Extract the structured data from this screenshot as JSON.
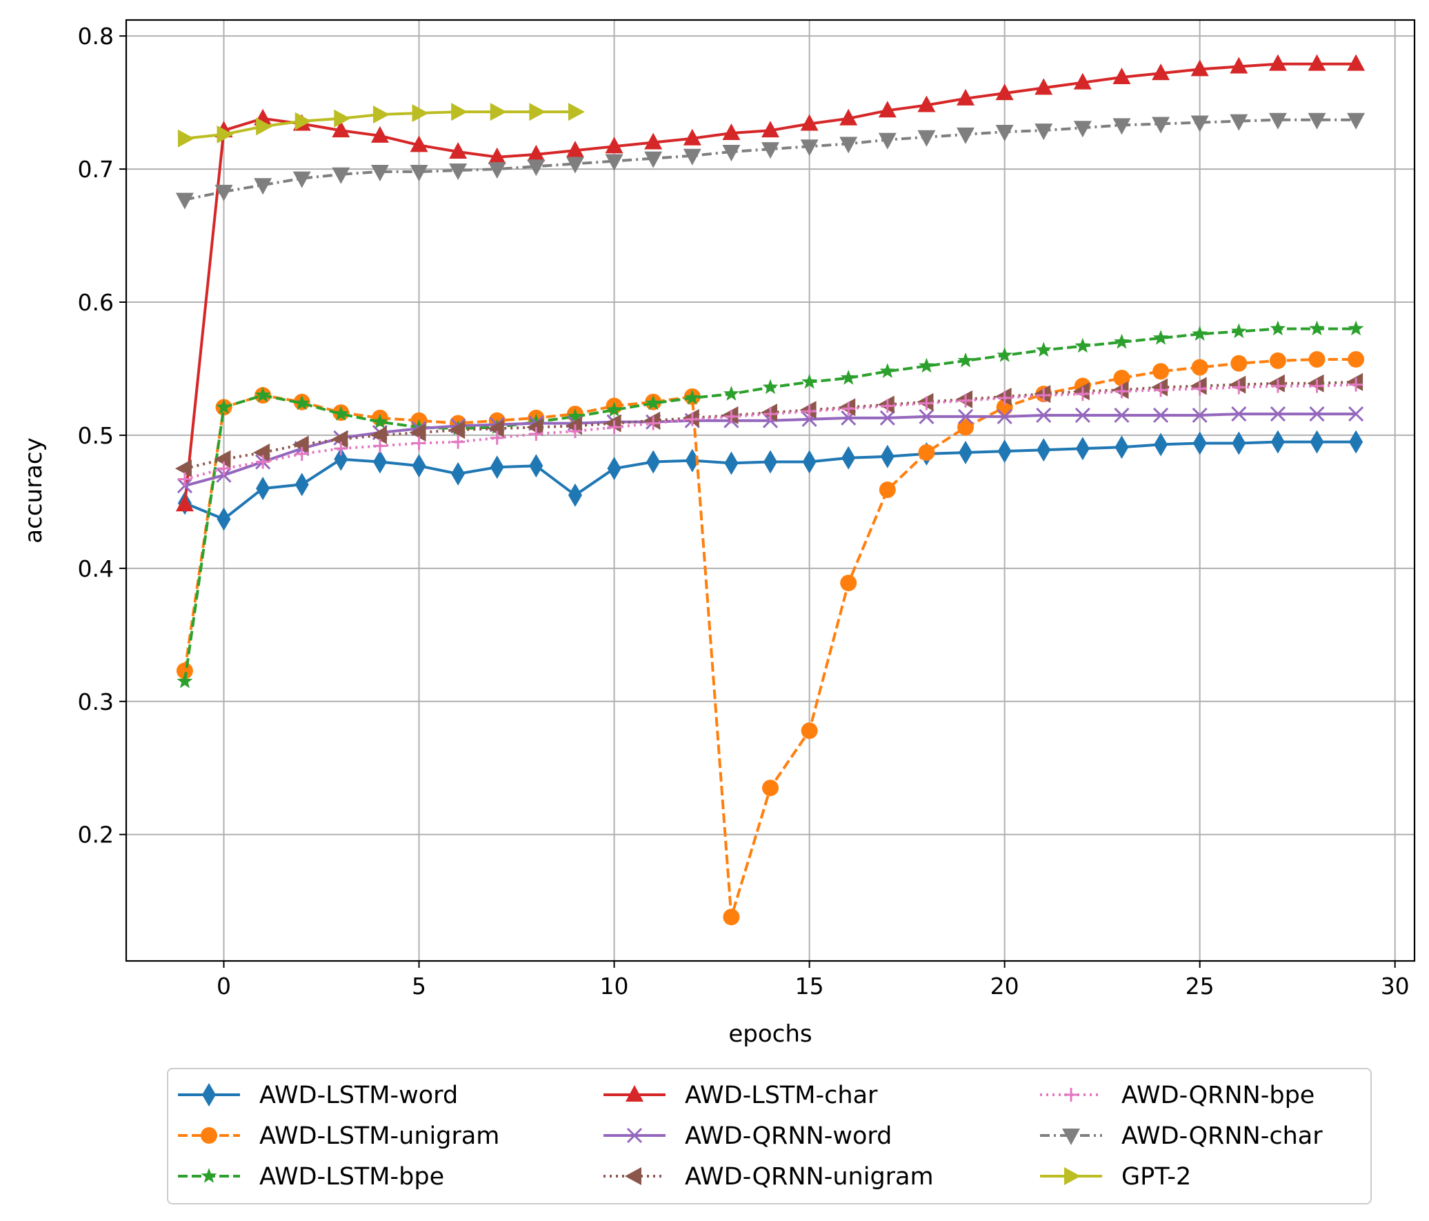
{
  "chart_data": {
    "type": "line",
    "title": "",
    "xlabel": "epochs",
    "ylabel": "accuracy",
    "xlim": [
      -2.5,
      30.5
    ],
    "ylim": [
      0.105,
      0.812
    ],
    "xticks": [
      0,
      5,
      10,
      15,
      20,
      25,
      30
    ],
    "xtick_labels": [
      "0",
      "5",
      "10",
      "15",
      "20",
      "25",
      "30"
    ],
    "yticks": [
      0.2,
      0.3,
      0.4,
      0.5,
      0.6,
      0.7,
      0.8
    ],
    "ytick_labels": [
      "0.2",
      "0.3",
      "0.4",
      "0.5",
      "0.6",
      "0.7",
      "0.8"
    ],
    "grid": true,
    "legend_position": "bottom-center, below plot, 3 columns",
    "series": [
      {
        "name": "AWD-LSTM-word",
        "color": "#1f77b4",
        "marker": "thin_diamond",
        "dash": "solid",
        "x": [
          -1,
          0,
          1,
          2,
          3,
          4,
          5,
          6,
          7,
          8,
          9,
          10,
          11,
          12,
          13,
          14,
          15,
          16,
          17,
          18,
          19,
          20,
          21,
          22,
          23,
          24,
          25,
          26,
          27,
          28,
          29
        ],
        "y": [
          0.449,
          0.437,
          0.46,
          0.463,
          0.482,
          0.48,
          0.477,
          0.471,
          0.476,
          0.477,
          0.455,
          0.475,
          0.48,
          0.481,
          0.479,
          0.48,
          0.48,
          0.483,
          0.484,
          0.486,
          0.487,
          0.488,
          0.489,
          0.49,
          0.491,
          0.493,
          0.494,
          0.494,
          0.495,
          0.495,
          0.495
        ]
      },
      {
        "name": "AWD-LSTM-unigram",
        "color": "#ff7f0e",
        "marker": "circle",
        "dash": "dashed",
        "x": [
          -1,
          0,
          1,
          2,
          3,
          4,
          5,
          6,
          7,
          8,
          9,
          10,
          11,
          12,
          13,
          14,
          15,
          16,
          17,
          18,
          19,
          20,
          21,
          22,
          23,
          24,
          25,
          26,
          27,
          28,
          29
        ],
        "y": [
          0.323,
          0.521,
          0.53,
          0.525,
          0.517,
          0.513,
          0.511,
          0.509,
          0.511,
          0.513,
          0.516,
          0.522,
          0.525,
          0.529,
          0.138,
          0.235,
          0.278,
          0.389,
          0.459,
          0.487,
          0.506,
          0.521,
          0.531,
          0.537,
          0.543,
          0.548,
          0.551,
          0.554,
          0.556,
          0.557,
          0.557
        ]
      },
      {
        "name": "AWD-LSTM-bpe",
        "color": "#2ca02c",
        "marker": "star",
        "dash": "dashed",
        "x": [
          -1,
          0,
          1,
          2,
          3,
          4,
          5,
          6,
          7,
          8,
          9,
          10,
          11,
          12,
          13,
          14,
          15,
          16,
          17,
          18,
          19,
          20,
          21,
          22,
          23,
          24,
          25,
          26,
          27,
          28,
          29
        ],
        "y": [
          0.315,
          0.521,
          0.53,
          0.524,
          0.516,
          0.51,
          0.506,
          0.505,
          0.506,
          0.51,
          0.514,
          0.519,
          0.524,
          0.528,
          0.531,
          0.536,
          0.54,
          0.543,
          0.548,
          0.552,
          0.556,
          0.56,
          0.564,
          0.567,
          0.57,
          0.573,
          0.576,
          0.578,
          0.58,
          0.58,
          0.58
        ]
      },
      {
        "name": "AWD-LSTM-char",
        "color": "#d62728",
        "marker": "triangle-up",
        "dash": "solid",
        "x": [
          -1,
          0,
          1,
          2,
          3,
          4,
          5,
          6,
          7,
          8,
          9,
          10,
          11,
          12,
          13,
          14,
          15,
          16,
          17,
          18,
          19,
          20,
          21,
          22,
          23,
          24,
          25,
          26,
          27,
          28,
          29
        ],
        "y": [
          0.448,
          0.729,
          0.738,
          0.734,
          0.729,
          0.725,
          0.718,
          0.713,
          0.709,
          0.711,
          0.714,
          0.717,
          0.72,
          0.723,
          0.727,
          0.729,
          0.734,
          0.738,
          0.744,
          0.748,
          0.753,
          0.757,
          0.761,
          0.765,
          0.769,
          0.772,
          0.775,
          0.777,
          0.779,
          0.779,
          0.779
        ]
      },
      {
        "name": "AWD-QRNN-word",
        "color": "#9467bd",
        "marker": "x",
        "dash": "solid",
        "x": [
          -1,
          0,
          1,
          2,
          3,
          4,
          5,
          6,
          7,
          8,
          9,
          10,
          11,
          12,
          13,
          14,
          15,
          16,
          17,
          18,
          19,
          20,
          21,
          22,
          23,
          24,
          25,
          26,
          27,
          28,
          29
        ],
        "y": [
          0.462,
          0.47,
          0.48,
          0.49,
          0.498,
          0.502,
          0.505,
          0.507,
          0.508,
          0.509,
          0.509,
          0.51,
          0.51,
          0.511,
          0.511,
          0.511,
          0.512,
          0.513,
          0.513,
          0.514,
          0.514,
          0.514,
          0.515,
          0.515,
          0.515,
          0.515,
          0.515,
          0.516,
          0.516,
          0.516,
          0.516
        ]
      },
      {
        "name": "AWD-QRNN-unigram",
        "color": "#8c564b",
        "marker": "triangle-left",
        "dash": "dotted",
        "x": [
          -1,
          0,
          1,
          2,
          3,
          4,
          5,
          6,
          7,
          8,
          9,
          10,
          11,
          12,
          13,
          14,
          15,
          16,
          17,
          18,
          19,
          20,
          21,
          22,
          23,
          24,
          25,
          26,
          27,
          28,
          29
        ],
        "y": [
          0.475,
          0.482,
          0.487,
          0.493,
          0.497,
          0.5,
          0.502,
          0.504,
          0.505,
          0.506,
          0.507,
          0.509,
          0.511,
          0.513,
          0.515,
          0.517,
          0.519,
          0.521,
          0.523,
          0.525,
          0.527,
          0.529,
          0.531,
          0.533,
          0.534,
          0.536,
          0.537,
          0.538,
          0.539,
          0.539,
          0.54
        ]
      },
      {
        "name": "AWD-QRNN-bpe",
        "color": "#e377c2",
        "marker": "plus",
        "dash": "dotted",
        "x": [
          -1,
          0,
          1,
          2,
          3,
          4,
          5,
          6,
          7,
          8,
          9,
          10,
          11,
          12,
          13,
          14,
          15,
          16,
          17,
          18,
          19,
          20,
          21,
          22,
          23,
          24,
          25,
          26,
          27,
          28,
          29
        ],
        "y": [
          0.467,
          0.475,
          0.48,
          0.486,
          0.49,
          0.492,
          0.494,
          0.495,
          0.498,
          0.501,
          0.503,
          0.506,
          0.509,
          0.512,
          0.514,
          0.516,
          0.518,
          0.52,
          0.522,
          0.524,
          0.526,
          0.528,
          0.53,
          0.531,
          0.533,
          0.534,
          0.535,
          0.536,
          0.537,
          0.537,
          0.538
        ]
      },
      {
        "name": "AWD-QRNN-char",
        "color": "#7f7f7f",
        "marker": "triangle-down",
        "dash": "dashdot",
        "x": [
          -1,
          0,
          1,
          2,
          3,
          4,
          5,
          6,
          7,
          8,
          9,
          10,
          11,
          12,
          13,
          14,
          15,
          16,
          17,
          18,
          19,
          20,
          21,
          22,
          23,
          24,
          25,
          26,
          27,
          28,
          29
        ],
        "y": [
          0.677,
          0.683,
          0.688,
          0.693,
          0.696,
          0.698,
          0.698,
          0.699,
          0.7,
          0.702,
          0.704,
          0.706,
          0.708,
          0.71,
          0.713,
          0.715,
          0.717,
          0.719,
          0.722,
          0.724,
          0.726,
          0.728,
          0.729,
          0.731,
          0.733,
          0.734,
          0.735,
          0.736,
          0.737,
          0.737,
          0.737
        ]
      },
      {
        "name": "GPT-2",
        "color": "#bcbd22",
        "marker": "triangle-right",
        "dash": "solid",
        "x": [
          -1,
          0,
          1,
          2,
          3,
          4,
          5,
          6,
          7,
          8,
          9
        ],
        "y": [
          0.723,
          0.726,
          0.732,
          0.736,
          0.738,
          0.741,
          0.742,
          0.743,
          0.743,
          0.743,
          0.743
        ]
      }
    ]
  }
}
